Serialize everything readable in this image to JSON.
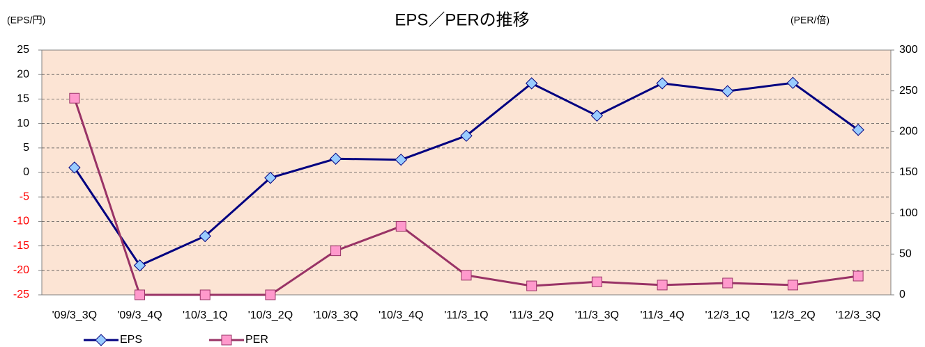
{
  "chart_data": {
    "type": "line",
    "title": "EPS／PERの推移",
    "y_label": "(EPS/円)",
    "y2_label": "(PER/倍)",
    "categories": [
      "'09/3_3Q",
      "'09/3_4Q",
      "'10/3_1Q",
      "'10/3_2Q",
      "'10/3_3Q",
      "'10/3_4Q",
      "'11/3_1Q",
      "'11/3_2Q",
      "'11/3_3Q",
      "'11/3_4Q",
      "'12/3_1Q",
      "'12/3_2Q",
      "'12/3_3Q"
    ],
    "series": [
      {
        "name": "EPS",
        "color": "#000080",
        "marker_color": "#99ccff",
        "marker": "diamond",
        "axis": "y",
        "values": [
          1.0,
          -19.0,
          -13.0,
          -1.1,
          2.8,
          2.6,
          7.5,
          18.2,
          11.6,
          18.2,
          16.6,
          18.3,
          8.7
        ]
      },
      {
        "name": "PER",
        "color": "#993366",
        "marker_color": "#ff99cc",
        "marker": "square",
        "axis": "y2",
        "values": [
          241,
          0,
          0,
          0,
          54,
          84,
          24,
          11,
          16,
          12,
          14.5,
          12,
          23
        ]
      }
    ],
    "ylim": [
      -25,
      25
    ],
    "yticks": [
      -25,
      -20,
      -15,
      -10,
      -5,
      0,
      5,
      10,
      15,
      20,
      25
    ],
    "y2lim": [
      0,
      300
    ],
    "y2ticks": [
      0,
      50,
      100,
      150,
      200,
      250,
      300
    ],
    "negative_tick_color": "#ff0000",
    "plot_background": "#fce4d4",
    "grid": true,
    "legend": "bottom-left"
  }
}
